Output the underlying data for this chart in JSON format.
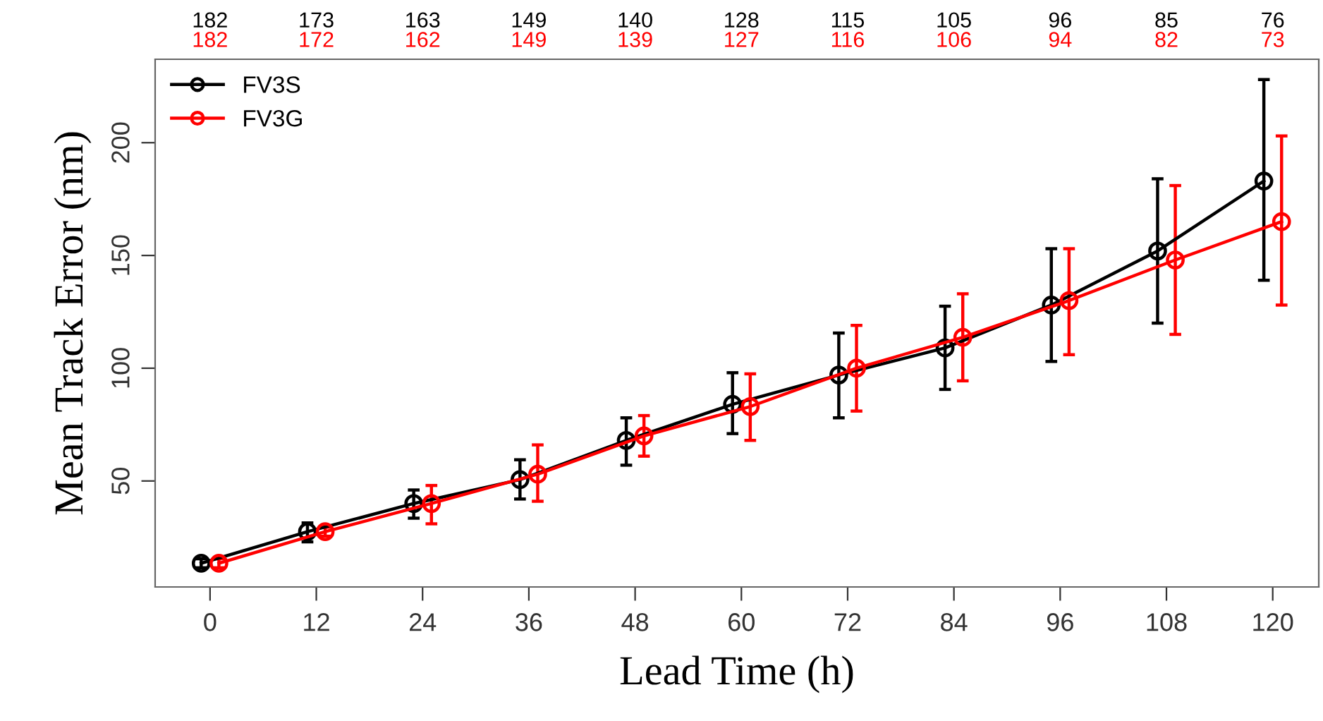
{
  "chart_data": {
    "type": "line",
    "xlabel": "Lead Time (h)",
    "ylabel": "Mean Track Error (nm)",
    "xlim": [
      -6.2,
      125.2
    ],
    "ylim": [
      3,
      237
    ],
    "xticks": [
      0,
      12,
      24,
      36,
      48,
      60,
      72,
      84,
      96,
      108,
      120
    ],
    "yticks": [
      50,
      100,
      150,
      200
    ],
    "annotations": [
      "182",
      "173",
      "163",
      "149",
      "140",
      "128",
      "115",
      "105",
      "96",
      "85",
      "76",
      "182",
      "172",
      "162",
      "149",
      "139",
      "127",
      "116",
      "106",
      "94",
      "82",
      "73"
    ],
    "marker": "circle",
    "line_style": "solid",
    "grid": false,
    "legend": "top left",
    "series": [
      {
        "name": "FV3S",
        "color": "#000000",
        "x": [
          -1,
          11,
          23,
          35,
          47,
          59,
          71,
          83,
          95,
          107,
          119
        ],
        "values": [
          13.5,
          27.5,
          40,
          50.6,
          68,
          84,
          97,
          109,
          128,
          152,
          183
        ],
        "errors": [
          [
            11.5,
            15.5
          ],
          [
            23,
            31.4
          ],
          [
            33.5,
            46
          ],
          [
            42,
            59.4
          ],
          [
            57,
            78
          ],
          [
            71,
            98
          ],
          [
            78,
            115.6
          ],
          [
            90.6,
            127.5
          ],
          [
            103,
            153
          ],
          [
            120,
            184
          ],
          [
            139,
            228
          ]
        ]
      },
      {
        "name": "FV3G",
        "color": "#ff0000",
        "x": [
          1,
          13,
          25,
          37,
          49,
          61,
          73,
          85,
          97,
          109,
          121
        ],
        "values": [
          13.5,
          27.5,
          40,
          53,
          70,
          83,
          100,
          113.7,
          130,
          148,
          165
        ],
        "errors": [
          [
            11.5,
            15.5
          ],
          [
            25.5,
            29.5
          ],
          [
            31,
            48
          ],
          [
            41,
            66
          ],
          [
            61,
            79
          ],
          [
            68,
            97.5
          ],
          [
            81,
            119
          ],
          [
            94.4,
            133
          ],
          [
            106,
            153
          ],
          [
            115,
            181
          ],
          [
            128,
            203
          ]
        ]
      }
    ]
  }
}
